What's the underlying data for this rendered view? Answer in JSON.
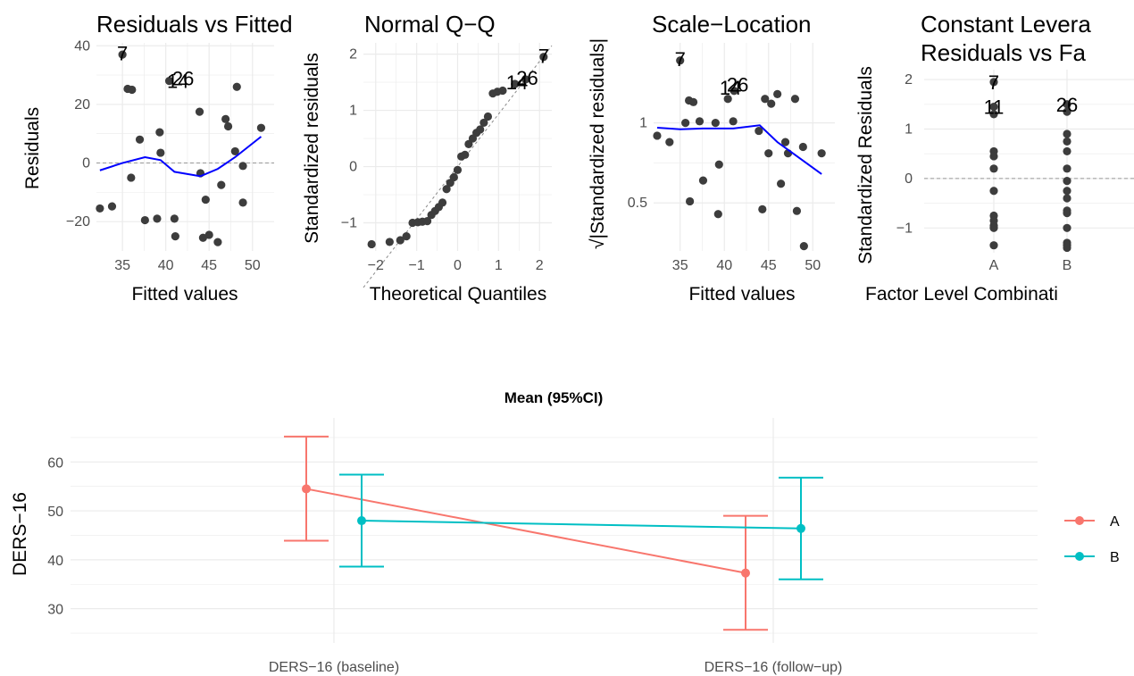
{
  "chart_data": [
    {
      "type": "scatter",
      "title": "Residuals vs Fitted",
      "xlabel": "Fitted values",
      "ylabel": "Residuals",
      "xlim": [
        32,
        52.5
      ],
      "ylim": [
        -30,
        41
      ],
      "xticks": [
        35,
        40,
        45,
        50
      ],
      "yticks": [
        -20,
        0,
        20,
        40
      ],
      "grid": true,
      "refline": 0,
      "points": [
        [
          32.4,
          -15.5
        ],
        [
          33.8,
          -14.8
        ],
        [
          35,
          37
        ],
        [
          35.6,
          25.3
        ],
        [
          36,
          -5
        ],
        [
          36.1,
          25
        ],
        [
          37,
          8
        ],
        [
          37.6,
          -19.5
        ],
        [
          39,
          -19
        ],
        [
          39.3,
          10.5
        ],
        [
          39.4,
          3.5
        ],
        [
          40.4,
          28
        ],
        [
          41,
          -19
        ],
        [
          41.1,
          -25
        ],
        [
          43.9,
          17.5
        ],
        [
          44,
          -3.5
        ],
        [
          44.3,
          -25.5
        ],
        [
          44.6,
          -12.5
        ],
        [
          45,
          -24.5
        ],
        [
          46,
          -27
        ],
        [
          46.4,
          -7.5
        ],
        [
          46.9,
          15
        ],
        [
          47.2,
          12.5
        ],
        [
          48,
          4
        ],
        [
          48.2,
          26
        ],
        [
          48.9,
          -1
        ],
        [
          48.9,
          -13.5
        ],
        [
          51,
          12
        ]
      ],
      "smooth": [
        [
          32.4,
          -2.5
        ],
        [
          35,
          0
        ],
        [
          37.6,
          2
        ],
        [
          39.4,
          1
        ],
        [
          41,
          -3
        ],
        [
          44,
          -4.5
        ],
        [
          46,
          -2
        ],
        [
          48,
          2
        ],
        [
          51,
          9
        ]
      ],
      "labels": [
        {
          "text": "7",
          "x": 35,
          "y": 37.5
        },
        {
          "text": "14",
          "x": 41.4,
          "y": 28
        },
        {
          "text": "26",
          "x": 42,
          "y": 29
        }
      ]
    },
    {
      "type": "scatter",
      "title": "Normal Q−Q",
      "xlabel": "Theoretical Quantiles",
      "ylabel": "Standardized residuals",
      "xlim": [
        -2.3,
        2.3
      ],
      "ylim": [
        -1.5,
        2.2
      ],
      "xticks": [
        -2,
        -1,
        0,
        1,
        2
      ],
      "yticks": [
        -1,
        0,
        1,
        2
      ],
      "grid": true,
      "points": [
        [
          -2.1,
          -1.38
        ],
        [
          -1.66,
          -1.34
        ],
        [
          -1.4,
          -1.31
        ],
        [
          -1.25,
          -1.24
        ],
        [
          -1.1,
          -1.0
        ],
        [
          -0.97,
          -0.99
        ],
        [
          -0.86,
          -0.98
        ],
        [
          -0.74,
          -0.97
        ],
        [
          -0.64,
          -0.86
        ],
        [
          -0.55,
          -0.79
        ],
        [
          -0.46,
          -0.72
        ],
        [
          -0.37,
          -0.64
        ],
        [
          -0.27,
          -0.4
        ],
        [
          -0.18,
          -0.29
        ],
        [
          -0.09,
          -0.19
        ],
        [
          0.0,
          -0.06
        ],
        [
          0.09,
          0.18
        ],
        [
          0.18,
          0.21
        ],
        [
          0.27,
          0.4
        ],
        [
          0.37,
          0.5
        ],
        [
          0.46,
          0.6
        ],
        [
          0.55,
          0.66
        ],
        [
          0.64,
          0.78
        ],
        [
          0.74,
          0.89
        ],
        [
          0.86,
          1.3
        ],
        [
          0.97,
          1.33
        ],
        [
          1.1,
          1.35
        ],
        [
          1.4,
          1.47
        ],
        [
          1.66,
          1.55
        ],
        [
          2.1,
          1.95
        ]
      ],
      "reference_line": [
        [
          -2.3,
          -2.15
        ],
        [
          2.3,
          2.15
        ]
      ],
      "labels": [
        {
          "text": "14",
          "x": 1.45,
          "y": 1.5
        },
        {
          "text": "26",
          "x": 1.7,
          "y": 1.58
        },
        {
          "text": "7",
          "x": 2.1,
          "y": 1.97
        }
      ]
    },
    {
      "type": "scatter",
      "title": "Scale−Location",
      "xlabel": "Fitted values",
      "ylabel": "√|Standardized residuals|",
      "xlim": [
        32,
        52.5
      ],
      "ylim": [
        0.2,
        1.5
      ],
      "xticks": [
        35,
        40,
        45,
        50
      ],
      "yticks": [
        0.5,
        1.0
      ],
      "grid": true,
      "points": [
        [
          32.4,
          0.92
        ],
        [
          33.8,
          0.88
        ],
        [
          35,
          1.39
        ],
        [
          35.6,
          1.0
        ],
        [
          36,
          1.14
        ],
        [
          36.1,
          0.51
        ],
        [
          36.5,
          1.13
        ],
        [
          37.6,
          0.64
        ],
        [
          37.2,
          1.01
        ],
        [
          39,
          1.0
        ],
        [
          39.3,
          0.43
        ],
        [
          39.4,
          0.74
        ],
        [
          40.4,
          1.15
        ],
        [
          41,
          1.01
        ],
        [
          41.1,
          1.2
        ],
        [
          43.9,
          0.95
        ],
        [
          44.3,
          0.46
        ],
        [
          44.6,
          1.15
        ],
        [
          45,
          0.81
        ],
        [
          45.3,
          1.12
        ],
        [
          46,
          1.18
        ],
        [
          46.4,
          0.62
        ],
        [
          46.9,
          0.88
        ],
        [
          47.2,
          0.81
        ],
        [
          48,
          1.15
        ],
        [
          48.2,
          0.45
        ],
        [
          48.9,
          0.85
        ],
        [
          49,
          0.23
        ],
        [
          51,
          0.81
        ]
      ],
      "smooth": [
        [
          32.4,
          0.97
        ],
        [
          35,
          0.96
        ],
        [
          37.6,
          0.965
        ],
        [
          39.4,
          0.965
        ],
        [
          41,
          0.965
        ],
        [
          44,
          0.985
        ],
        [
          46,
          0.88
        ],
        [
          48,
          0.8
        ],
        [
          51,
          0.68
        ]
      ],
      "labels": [
        {
          "text": "7",
          "x": 35,
          "y": 1.4
        },
        {
          "text": "14",
          "x": 40.7,
          "y": 1.22
        },
        {
          "text": "26",
          "x": 41.5,
          "y": 1.24
        }
      ]
    },
    {
      "type": "scatter",
      "title_lines": [
        "Constant Levera",
        "Residuals vs Fa"
      ],
      "xlabel": "Factor Level Combinati",
      "ylabel": "Standardized Residuals",
      "categories": [
        "A",
        "B"
      ],
      "ylim": [
        -1.5,
        2.2
      ],
      "yticks": [
        -1,
        0,
        1,
        2
      ],
      "grid": true,
      "refline": 0,
      "series": [
        {
          "name": "A",
          "values": [
            1.95,
            1.45,
            1.3,
            0.55,
            0.45,
            0.2,
            -0.25,
            -0.75,
            -0.85,
            -0.95,
            -1.0,
            -1.35
          ]
        },
        {
          "name": "B",
          "values": [
            1.5,
            1.35,
            0.9,
            0.75,
            0.55,
            0.2,
            -0.05,
            -0.25,
            -0.4,
            -0.65,
            -0.7,
            -1.0,
            -1.3,
            -1.35,
            -1.4
          ]
        }
      ],
      "labels": [
        {
          "text": "7",
          "cat": "A",
          "y": 1.95
        },
        {
          "text": "11",
          "cat": "A",
          "y": 1.45
        },
        {
          "text": "26",
          "cat": "B",
          "y": 1.5
        }
      ]
    },
    {
      "type": "line",
      "title": "Mean (95%CI)",
      "xlabel": "",
      "ylabel": "DERS−16",
      "categories": [
        "DERS−16 (baseline)",
        "DERS−16 (follow−up)"
      ],
      "ylim": [
        23,
        69
      ],
      "yticks": [
        30,
        40,
        50,
        60
      ],
      "grid": true,
      "legend": "right",
      "series": [
        {
          "name": "A",
          "color": "#F8766D",
          "values": [
            54.5,
            37.3
          ],
          "lower": [
            43.9,
            25.7
          ],
          "upper": [
            65.2,
            49.0
          ]
        },
        {
          "name": "B",
          "color": "#00BFC4",
          "values": [
            48.0,
            46.4
          ],
          "lower": [
            38.6,
            36.0
          ],
          "upper": [
            57.4,
            56.8
          ]
        }
      ]
    }
  ]
}
